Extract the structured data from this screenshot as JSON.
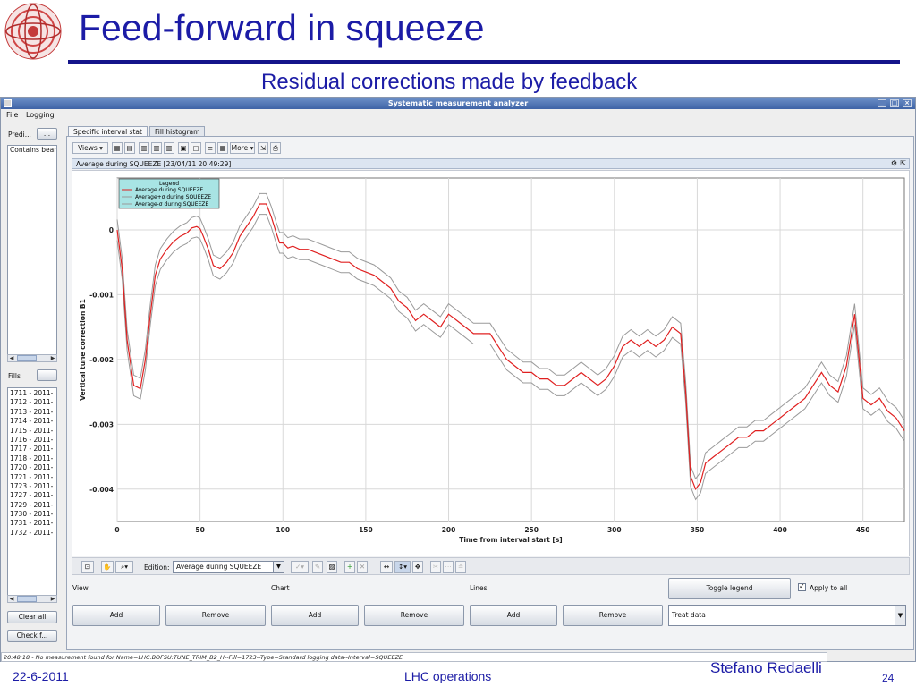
{
  "slide": {
    "title": "Feed-forward in squeeze",
    "subtitle": "Residual corrections made by feedback",
    "footer_date": "22-6-2011",
    "footer_center": "LHC operations",
    "footer_author": "Stefano Redaelli",
    "page_number": "24",
    "title_color": "#1c1ca6"
  },
  "window": {
    "title": "Systematic measurement analyzer",
    "menu": [
      "File",
      "Logging"
    ]
  },
  "left_panel": {
    "predi_label": "Predi...",
    "predi_button": "...",
    "contains_text": "Contains bear",
    "fills_label": "Fills",
    "fills_button": "...",
    "fills": [
      "1711 - 2011-",
      "1712 - 2011-",
      "1713 - 2011-",
      "1714 - 2011-",
      "1715 - 2011-",
      "1716 - 2011-",
      "1717 - 2011-",
      "1718 - 2011-",
      "1720 - 2011-",
      "1721 - 2011-",
      "1723 - 2011-",
      "1727 - 2011-",
      "1729 - 2011-",
      "1730 - 2011-",
      "1731 - 2011-",
      "1732 - 2011-"
    ],
    "clear_all": "Clear all",
    "check": "Check f..."
  },
  "tabs": [
    "Specific interval stat",
    "Fill histogram"
  ],
  "toolbar": {
    "views": "Views",
    "more": "More"
  },
  "chart_header": "Average during SQUEEZE  [23/04/11 20:49:29]",
  "chart_data": {
    "type": "line",
    "xlabel": "Time from interval start [s]",
    "ylabel": "Vertical tune correction B1",
    "xlim": [
      0,
      475
    ],
    "ylim": [
      -0.0045,
      0.0008
    ],
    "x_ticks": [
      0,
      50,
      100,
      150,
      200,
      250,
      300,
      350,
      400,
      450
    ],
    "y_ticks": [
      0,
      -0.001,
      -0.002,
      -0.003,
      -0.004
    ],
    "y_tick_labels": [
      "0",
      "-0.001",
      "-0.002",
      "-0.003",
      "-0.004"
    ],
    "grid": true,
    "legend_title": "Legend",
    "legend_position": "top-left",
    "series": [
      {
        "name": "Average during SQUEEZE",
        "color": "#e02020",
        "x": [
          0,
          3,
          6,
          10,
          14,
          17,
          20,
          23,
          26,
          30,
          34,
          38,
          42,
          45,
          48,
          50,
          52,
          55,
          58,
          62,
          66,
          70,
          74,
          78,
          82,
          86,
          90,
          93,
          96,
          98,
          100,
          103,
          106,
          110,
          115,
          120,
          125,
          130,
          135,
          140,
          145,
          150,
          155,
          160,
          165,
          170,
          175,
          180,
          185,
          190,
          195,
          200,
          205,
          210,
          215,
          220,
          225,
          230,
          235,
          240,
          245,
          250,
          255,
          260,
          265,
          270,
          275,
          280,
          285,
          290,
          295,
          300,
          305,
          310,
          315,
          320,
          325,
          330,
          335,
          340,
          343,
          346,
          349,
          352,
          355,
          360,
          365,
          370,
          375,
          380,
          385,
          390,
          395,
          400,
          405,
          410,
          415,
          420,
          425,
          430,
          435,
          440,
          445,
          450,
          455,
          460,
          465,
          470,
          475
        ],
        "y": [
          0,
          -0.0006,
          -0.0017,
          -0.0024,
          -0.00245,
          -0.002,
          -0.0013,
          -0.0007,
          -0.00045,
          -0.0003,
          -0.00018,
          -0.0001,
          -5e-05,
          3e-05,
          5e-05,
          2e-05,
          -0.0001,
          -0.0003,
          -0.00055,
          -0.0006,
          -0.0005,
          -0.00035,
          -0.0001,
          5e-05,
          0.0002,
          0.0004,
          0.0004,
          0.0002,
          -5e-05,
          -0.0002,
          -0.0002,
          -0.00028,
          -0.00025,
          -0.0003,
          -0.0003,
          -0.00035,
          -0.0004,
          -0.00045,
          -0.0005,
          -0.0005,
          -0.0006,
          -0.00065,
          -0.0007,
          -0.0008,
          -0.0009,
          -0.0011,
          -0.0012,
          -0.0014,
          -0.0013,
          -0.0014,
          -0.0015,
          -0.0013,
          -0.0014,
          -0.0015,
          -0.0016,
          -0.0016,
          -0.0016,
          -0.0018,
          -0.002,
          -0.0021,
          -0.0022,
          -0.0022,
          -0.0023,
          -0.0023,
          -0.0024,
          -0.0024,
          -0.0023,
          -0.0022,
          -0.0023,
          -0.0024,
          -0.0023,
          -0.0021,
          -0.0018,
          -0.0017,
          -0.0018,
          -0.0017,
          -0.0018,
          -0.0017,
          -0.0015,
          -0.0016,
          -0.0025,
          -0.0038,
          -0.004,
          -0.0039,
          -0.0036,
          -0.0035,
          -0.0034,
          -0.0033,
          -0.0032,
          -0.0032,
          -0.0031,
          -0.0031,
          -0.003,
          -0.0029,
          -0.0028,
          -0.0027,
          -0.0026,
          -0.0024,
          -0.0022,
          -0.0024,
          -0.0025,
          -0.0021,
          -0.0013,
          -0.0026,
          -0.0027,
          -0.0026,
          -0.0028,
          -0.0029,
          -0.0031
        ]
      },
      {
        "name": "Average+σ during SQUEEZE",
        "color": "#9a9a9a",
        "offset": 0.00016
      },
      {
        "name": "Average-σ during SQUEEZE",
        "color": "#9a9a9a",
        "offset": -0.00016
      }
    ]
  },
  "bottom_toolbar": {
    "edition_label": "Edition:",
    "edition_value": "Average during SQUEEZE"
  },
  "controls": {
    "view_label": "View",
    "chart_label": "Chart",
    "lines_label": "Lines",
    "toggle_legend": "Toggle legend",
    "apply_to_all": "Apply to all",
    "add": "Add",
    "remove": "Remove",
    "treat_data": "Treat data"
  },
  "status": "20:48:18 - No measurement found for Name=LHC.BOFSU:TUNE_TRIM_B2_H--Fill=1723--Type=Standard logging data--Interval=SQUEEZE"
}
